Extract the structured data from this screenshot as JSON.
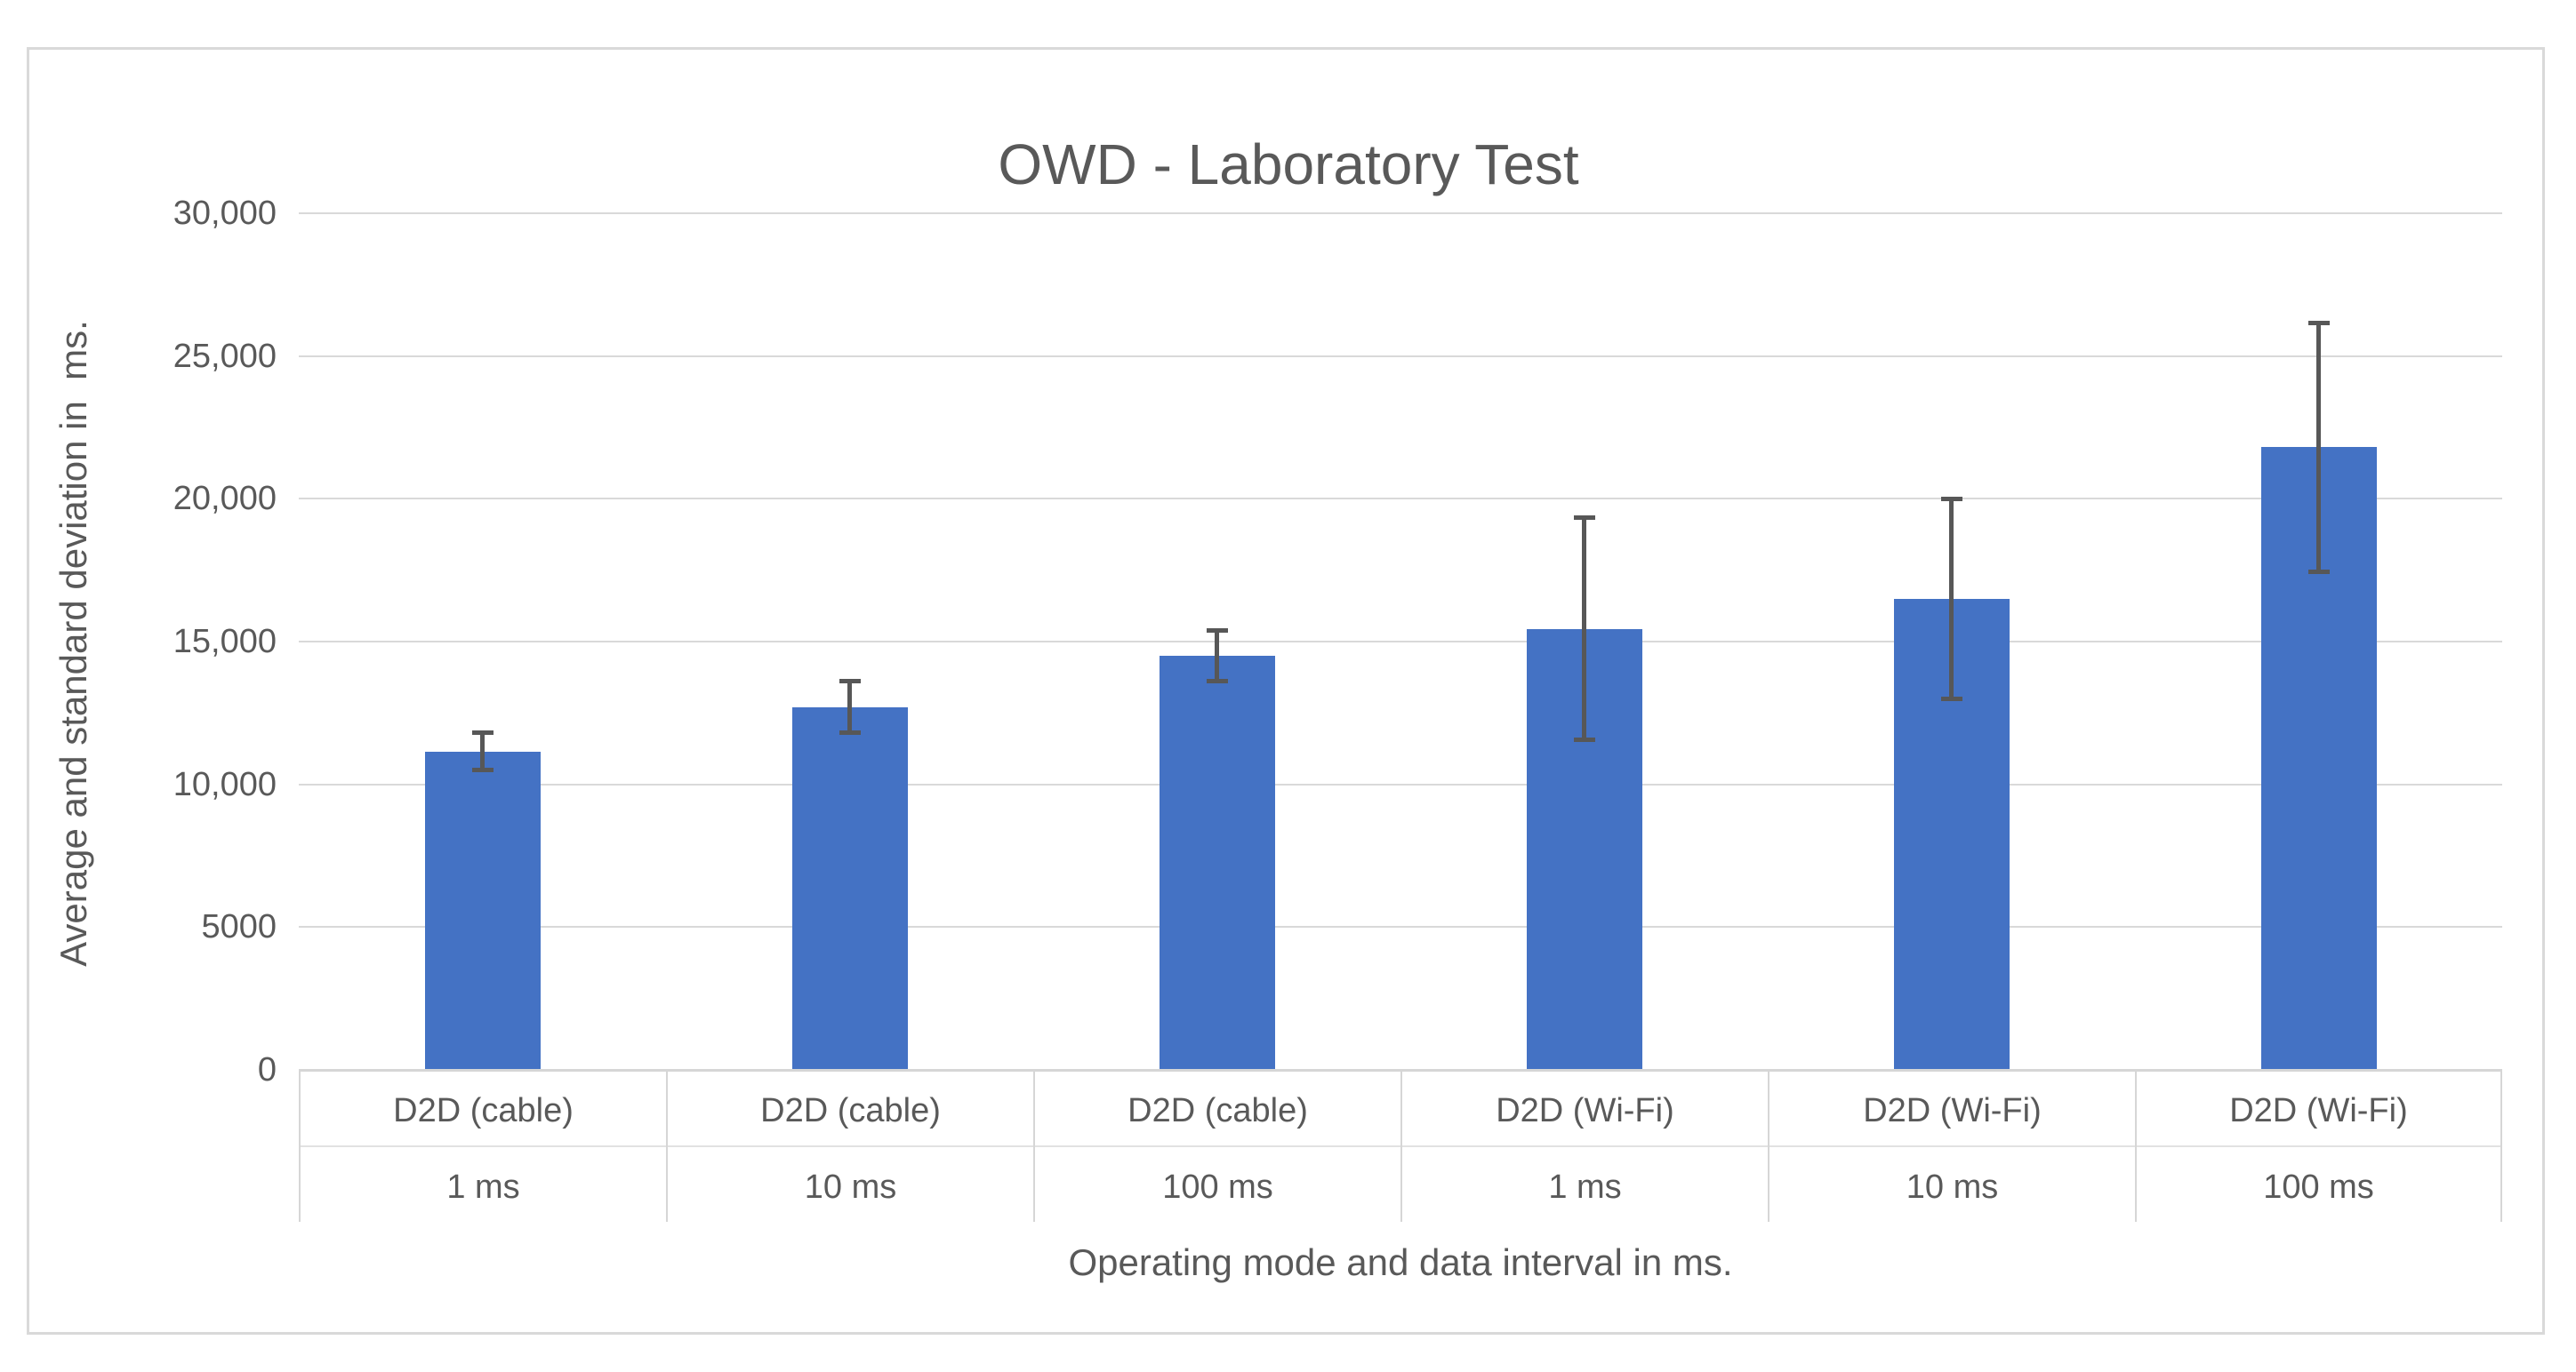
{
  "chart_data": {
    "type": "bar",
    "title": "OWD - Laboratory Test",
    "ylabel": "Average and standard deviation in  ms.",
    "xlabel": "Operating mode and data interval in ms.",
    "categories_top": [
      "D2D (cable)",
      "D2D (cable)",
      "D2D (cable)",
      "D2D (Wi-Fi)",
      "D2D (Wi-Fi)",
      "D2D (Wi-Fi)"
    ],
    "categories_bottom": [
      "1 ms",
      "10 ms",
      "100 ms",
      "1 ms",
      "10 ms",
      "100 ms"
    ],
    "series": [
      {
        "name": "OWD",
        "values": [
          11150,
          12700,
          14500,
          15450,
          16500,
          21800
        ],
        "error_bars_plus": [
          650,
          900,
          900,
          3900,
          3500,
          4350
        ],
        "error_bars_minus": [
          650,
          900,
          900,
          3900,
          3500,
          4350
        ]
      }
    ],
    "ylim": [
      0,
      30000
    ],
    "ytick_interval": 5000,
    "ytick_labels": [
      "0",
      "5000",
      "10,000",
      "15,000",
      "20,000",
      "25,000",
      "30,000"
    ],
    "grid": true,
    "legend": false,
    "colors": {
      "bar": "#4472C4",
      "error_bar": "#575757",
      "text": "#595959",
      "gridline": "#D9D9D9",
      "chart_border": "#D9D9D9"
    }
  }
}
